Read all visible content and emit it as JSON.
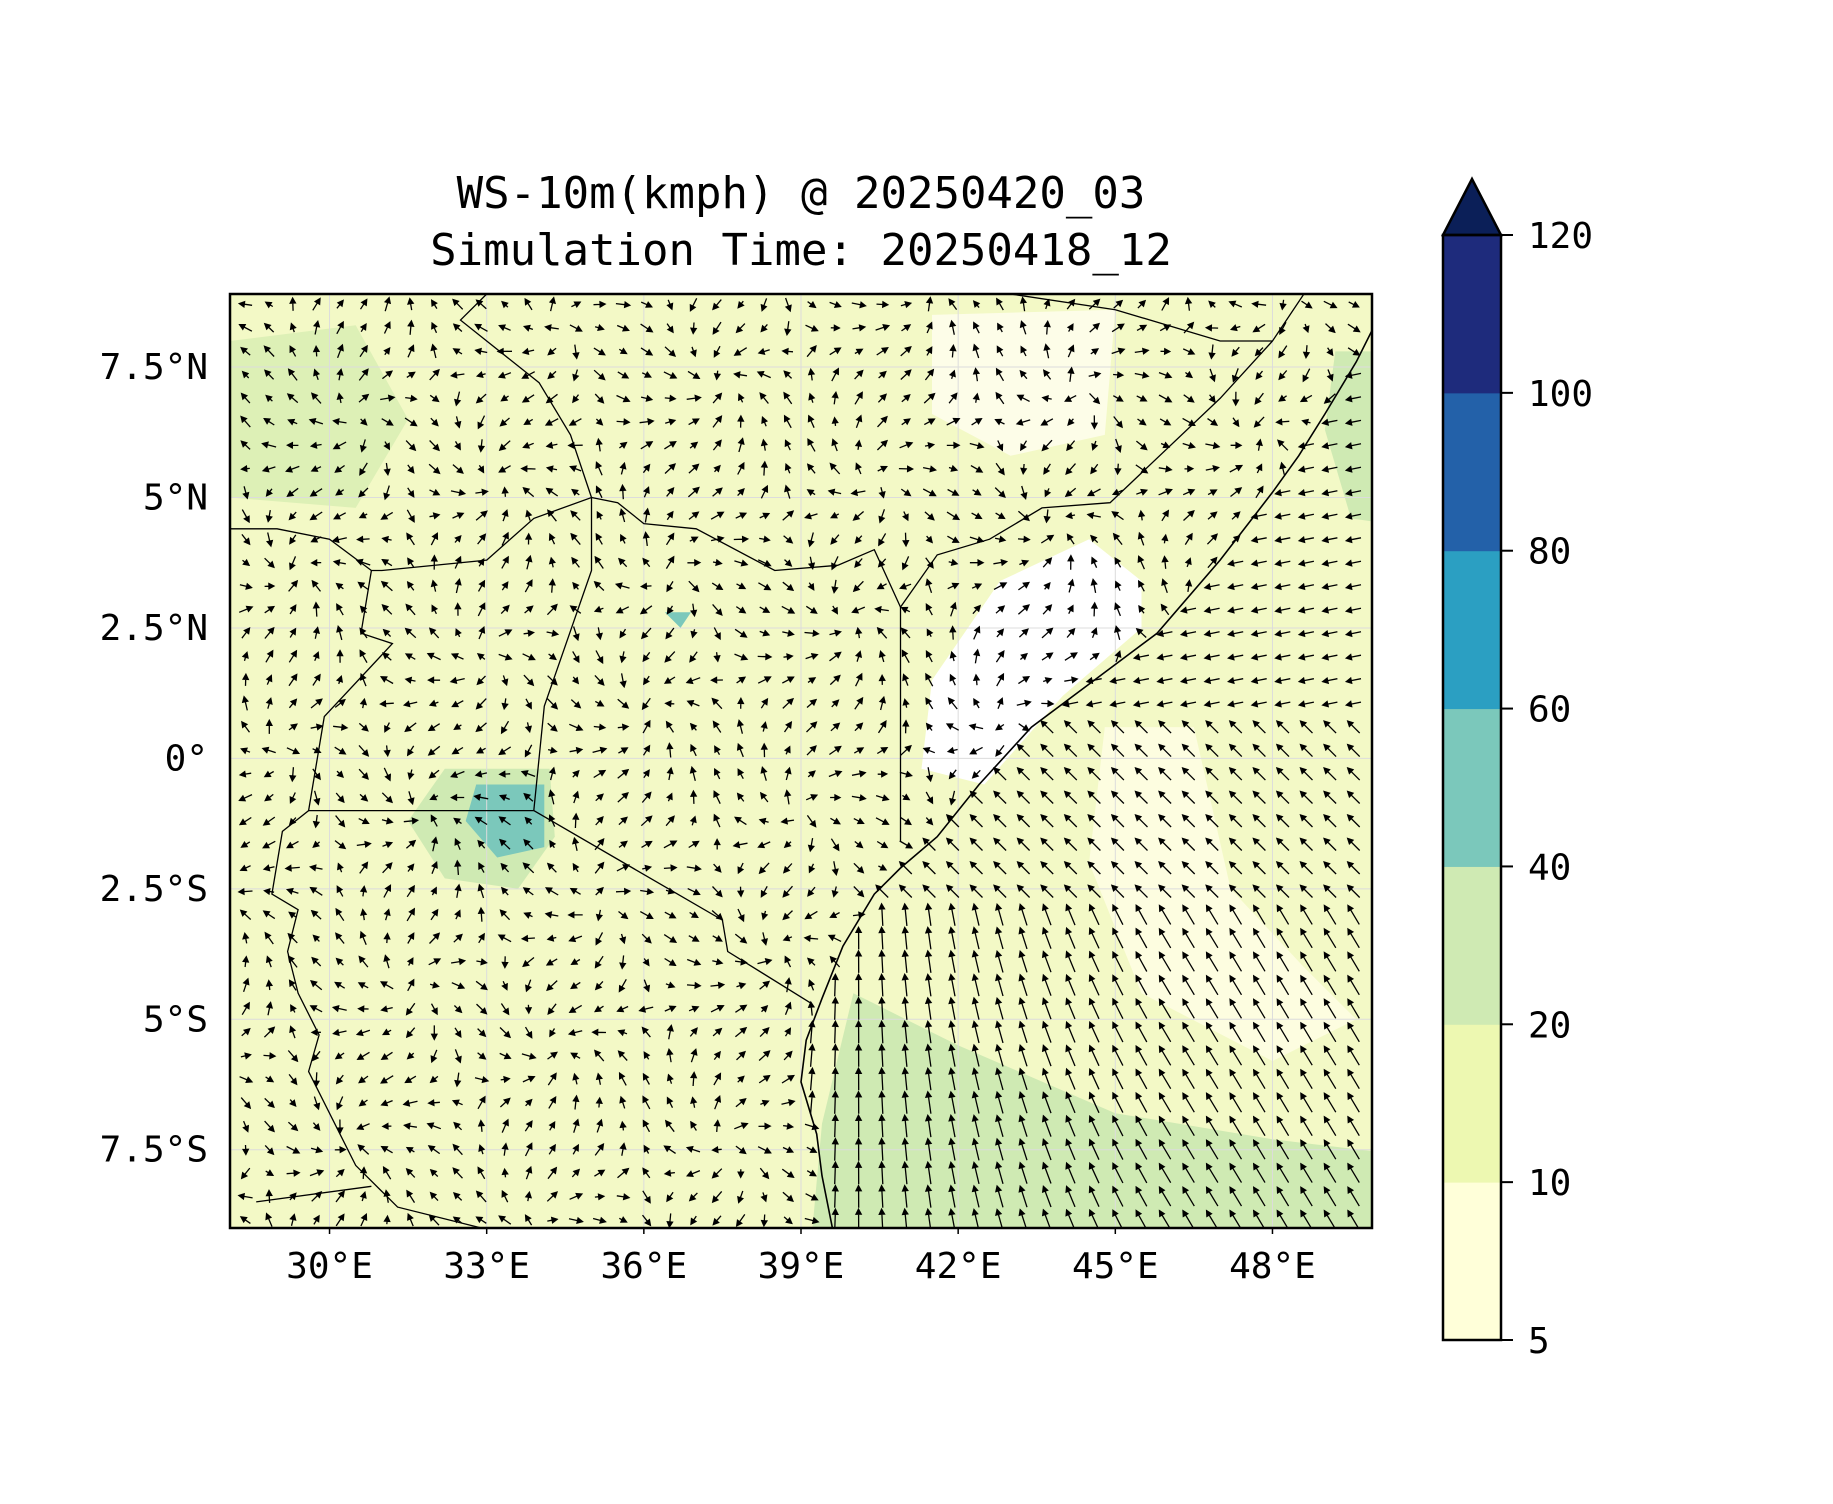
{
  "chart_data": {
    "type": "heatmap",
    "subtype": "filled contour map with wind vectors",
    "title_line1": "WS-10m(kmph) @ 20250420_03",
    "title_line2": "Simulation Time: 20250418_12",
    "variable": "10 m wind speed",
    "units": "kmph",
    "lon_range": [
      28.1,
      49.9
    ],
    "lat_range": [
      -9.0,
      8.9
    ],
    "x_ticks": [
      30,
      33,
      36,
      39,
      42,
      45,
      48
    ],
    "x_tick_labels": [
      "30°E",
      "33°E",
      "36°E",
      "39°E",
      "42°E",
      "45°E",
      "48°E"
    ],
    "y_ticks": [
      7.5,
      5,
      2.5,
      0,
      -2.5,
      -5,
      -7.5
    ],
    "y_tick_labels": [
      "7.5°N",
      "5°N",
      "2.5°N",
      "0°",
      "2.5°S",
      "5°S",
      "7.5°S"
    ],
    "grid": true,
    "colorbar": {
      "levels": [
        5,
        10,
        20,
        40,
        60,
        80,
        100,
        120
      ],
      "tick_labels": [
        "5",
        "10",
        "20",
        "40",
        "60",
        "80",
        "100",
        "120"
      ],
      "colors": [
        "#ffffd9",
        "#edf8b1",
        "#cfeab3",
        "#7bc8bb",
        "#2b9fc2",
        "#2361a9",
        "#1e2b7c"
      ],
      "extend_color": "#0b1f58",
      "extend": "max",
      "placement": "right"
    },
    "coastline": [
      [
        49.9,
        8.2
      ],
      [
        49.6,
        7.6
      ],
      [
        49.0,
        6.6
      ],
      [
        48.5,
        5.8
      ],
      [
        48.0,
        5.1
      ],
      [
        47.0,
        3.8
      ],
      [
        45.8,
        2.4
      ],
      [
        44.6,
        1.5
      ],
      [
        43.4,
        0.6
      ],
      [
        42.4,
        -0.5
      ],
      [
        41.6,
        -1.5
      ],
      [
        40.9,
        -2.1
      ],
      [
        40.4,
        -2.6
      ],
      [
        39.8,
        -3.6
      ],
      [
        39.4,
        -4.6
      ],
      [
        39.1,
        -5.4
      ],
      [
        39.0,
        -6.2
      ],
      [
        39.3,
        -7.2
      ],
      [
        39.4,
        -8.0
      ],
      [
        39.6,
        -9.0
      ]
    ],
    "borders": [
      [
        [
          40.9,
          -1.6
        ],
        [
          40.9,
          2.9
        ],
        [
          41.6,
          3.9
        ],
        [
          42.6,
          4.2
        ],
        [
          43.6,
          4.8
        ],
        [
          44.9,
          4.9
        ],
        [
          47.0,
          6.9
        ],
        [
          48.0,
          8.0
        ],
        [
          48.6,
          8.9
        ]
      ],
      [
        [
          40.9,
          2.9
        ],
        [
          40.4,
          4.0
        ],
        [
          39.7,
          3.7
        ],
        [
          38.5,
          3.6
        ],
        [
          37.0,
          4.4
        ],
        [
          36.0,
          4.5
        ],
        [
          35.5,
          4.9
        ],
        [
          35.0,
          5.0
        ]
      ],
      [
        [
          33.9,
          -1.0
        ],
        [
          37.5,
          -3.1
        ],
        [
          37.6,
          -3.7
        ],
        [
          39.2,
          -4.7
        ]
      ],
      [
        [
          29.6,
          -1.0
        ],
        [
          33.9,
          -1.0
        ]
      ],
      [
        [
          33.9,
          -1.0
        ],
        [
          34.1,
          1.0
        ],
        [
          35.0,
          3.6
        ],
        [
          35.0,
          5.0
        ],
        [
          33.9,
          4.6
        ],
        [
          33.0,
          3.8
        ],
        [
          31.0,
          3.6
        ],
        [
          30.8,
          3.6
        ],
        [
          30.0,
          4.2
        ],
        [
          29.0,
          4.4
        ],
        [
          28.1,
          4.4
        ]
      ],
      [
        [
          30.8,
          3.6
        ],
        [
          30.6,
          2.4
        ],
        [
          31.2,
          2.2
        ],
        [
          29.9,
          0.8
        ],
        [
          29.6,
          -1.0
        ],
        [
          29.1,
          -1.4
        ],
        [
          28.9,
          -2.6
        ],
        [
          29.4,
          -2.9
        ],
        [
          29.2,
          -3.7
        ],
        [
          29.4,
          -4.5
        ],
        [
          29.8,
          -5.3
        ],
        [
          29.6,
          -6.0
        ],
        [
          30.5,
          -7.8
        ],
        [
          31.3,
          -8.6
        ],
        [
          32.9,
          -9.0
        ]
      ],
      [
        [
          35.0,
          5.0
        ],
        [
          34.6,
          6.2
        ],
        [
          34.0,
          7.2
        ],
        [
          33.0,
          8.0
        ],
        [
          32.5,
          8.4
        ],
        [
          33.0,
          8.9
        ]
      ],
      [
        [
          28.6,
          -8.5
        ],
        [
          30.8,
          -8.2
        ]
      ],
      [
        [
          43.0,
          8.9
        ],
        [
          45.0,
          8.6
        ],
        [
          47.0,
          8.0
        ],
        [
          48.0,
          8.0
        ]
      ]
    ]
  }
}
